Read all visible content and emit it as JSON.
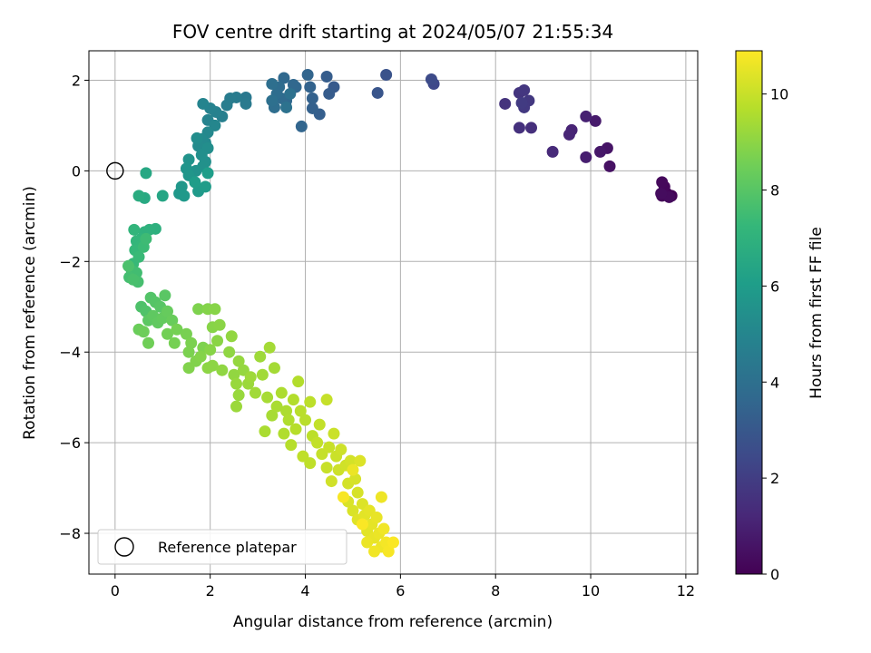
{
  "chart_data": {
    "type": "scatter",
    "title": "FOV centre drift starting at 2024/05/07 21:55:34",
    "xlabel": "Angular distance from reference (arcmin)",
    "ylabel": "Rotation from reference (arcmin)",
    "xlim": [
      -0.55,
      12.25
    ],
    "ylim": [
      -8.9,
      2.65
    ],
    "xticks": [
      0,
      2,
      4,
      6,
      8,
      10,
      12
    ],
    "yticks": [
      -8,
      -6,
      -4,
      -2,
      0,
      2
    ],
    "grid": true,
    "legend_position": "lower-left",
    "legend": [
      {
        "label": "Reference platepar",
        "marker": "hollow-circle"
      }
    ],
    "reference_point": {
      "x": 0,
      "y": 0
    },
    "colorbar": {
      "label": "Hours from first FF file",
      "range": [
        0,
        10.9
      ],
      "ticks": [
        0,
        2,
        4,
        6,
        8,
        10
      ],
      "colormap": "viridis"
    },
    "colormap_stops": [
      "#440154",
      "#482878",
      "#3e4989",
      "#31688e",
      "#26828e",
      "#1f9e89",
      "#35b779",
      "#6ece58",
      "#b5de2b",
      "#fde725"
    ],
    "points_xyc": [
      [
        11.7,
        -0.55,
        0.05
      ],
      [
        11.6,
        -0.5,
        0.1
      ],
      [
        11.5,
        -0.55,
        0.15
      ],
      [
        11.55,
        -0.35,
        0.2
      ],
      [
        11.5,
        -0.25,
        0.25
      ],
      [
        11.65,
        -0.58,
        0.3
      ],
      [
        11.48,
        -0.5,
        0.35
      ],
      [
        10.4,
        0.1,
        0.5
      ],
      [
        10.35,
        0.5,
        0.6
      ],
      [
        10.2,
        0.42,
        0.7
      ],
      [
        10.1,
        1.1,
        0.8
      ],
      [
        9.9,
        0.3,
        0.9
      ],
      [
        9.9,
        1.2,
        1.0
      ],
      [
        9.6,
        0.9,
        1.1
      ],
      [
        9.55,
        0.8,
        1.15
      ],
      [
        9.2,
        0.42,
        1.3
      ],
      [
        8.75,
        0.95,
        1.5
      ],
      [
        8.5,
        0.95,
        1.55
      ],
      [
        8.2,
        1.48,
        1.6
      ],
      [
        8.5,
        1.72,
        1.7
      ],
      [
        8.6,
        1.78,
        1.75
      ],
      [
        8.7,
        1.55,
        1.8
      ],
      [
        8.6,
        1.4,
        1.85
      ],
      [
        8.55,
        1.5,
        1.9
      ],
      [
        6.7,
        1.92,
        2.4
      ],
      [
        6.65,
        2.02,
        2.5
      ],
      [
        5.7,
        2.12,
        2.8
      ],
      [
        5.52,
        1.72,
        2.9
      ],
      [
        4.6,
        1.85,
        3.1
      ],
      [
        4.5,
        1.7,
        3.15
      ],
      [
        4.45,
        2.08,
        3.2
      ],
      [
        4.3,
        1.25,
        3.3
      ],
      [
        4.15,
        1.38,
        3.35
      ],
      [
        4.15,
        1.6,
        3.4
      ],
      [
        4.1,
        1.85,
        3.45
      ],
      [
        4.05,
        2.12,
        3.5
      ],
      [
        3.92,
        0.98,
        3.55
      ],
      [
        3.8,
        1.85,
        3.6
      ],
      [
        3.75,
        1.9,
        3.65
      ],
      [
        3.6,
        1.55,
        3.7
      ],
      [
        3.55,
        2.05,
        3.7
      ],
      [
        3.5,
        1.6,
        3.75
      ],
      [
        3.45,
        1.85,
        3.8
      ],
      [
        3.4,
        1.7,
        3.85
      ],
      [
        3.35,
        1.4,
        3.9
      ],
      [
        3.3,
        1.92,
        3.95
      ],
      [
        3.3,
        1.55,
        4.0
      ],
      [
        3.68,
        1.7,
        4.05
      ],
      [
        3.6,
        1.4,
        4.1
      ],
      [
        2.75,
        1.62,
        4.4
      ],
      [
        2.75,
        1.48,
        4.45
      ],
      [
        2.55,
        1.62,
        4.5
      ],
      [
        2.42,
        1.6,
        4.55
      ],
      [
        2.35,
        1.45,
        4.6
      ],
      [
        2.25,
        1.2,
        4.7
      ],
      [
        2.12,
        1.3,
        4.8
      ],
      [
        2.0,
        1.38,
        4.85
      ],
      [
        1.95,
        1.12,
        4.9
      ],
      [
        1.85,
        1.48,
        4.95
      ],
      [
        2.1,
        1.0,
        5.0
      ],
      [
        1.95,
        0.85,
        5.1
      ],
      [
        1.9,
        0.62,
        5.15
      ],
      [
        1.82,
        0.7,
        5.2
      ],
      [
        1.75,
        0.55,
        5.25
      ],
      [
        1.72,
        0.72,
        5.3
      ],
      [
        1.95,
        0.5,
        5.35
      ],
      [
        1.82,
        0.35,
        5.4
      ],
      [
        1.9,
        0.2,
        5.45
      ],
      [
        1.85,
        0.1,
        5.5
      ],
      [
        1.7,
        0.0,
        5.55
      ],
      [
        1.55,
        0.25,
        5.6
      ],
      [
        1.5,
        0.05,
        5.65
      ],
      [
        1.55,
        -0.1,
        5.7
      ],
      [
        1.4,
        -0.35,
        5.75
      ],
      [
        1.35,
        -0.5,
        5.8
      ],
      [
        1.45,
        -0.55,
        5.85
      ],
      [
        1.75,
        -0.45,
        5.9
      ],
      [
        1.9,
        -0.35,
        5.95
      ],
      [
        1.68,
        -0.25,
        6.0
      ],
      [
        1.95,
        -0.05,
        6.05
      ],
      [
        1.0,
        -0.55,
        6.4
      ],
      [
        0.65,
        -0.05,
        6.5
      ],
      [
        0.62,
        -0.6,
        6.6
      ],
      [
        0.5,
        -0.55,
        6.7
      ],
      [
        0.85,
        -1.28,
        6.9
      ],
      [
        0.72,
        -1.3,
        6.95
      ],
      [
        0.62,
        -1.35,
        7.0
      ],
      [
        0.55,
        -1.5,
        7.05
      ],
      [
        0.4,
        -1.3,
        7.1
      ],
      [
        0.45,
        -1.55,
        7.15
      ],
      [
        0.55,
        -1.65,
        7.2
      ],
      [
        0.42,
        -1.75,
        7.25
      ],
      [
        0.38,
        -2.05,
        7.3
      ],
      [
        0.5,
        -1.9,
        7.35
      ],
      [
        0.6,
        -1.68,
        7.4
      ],
      [
        0.65,
        -1.5,
        7.45
      ],
      [
        0.35,
        -2.2,
        7.5
      ],
      [
        0.45,
        -2.25,
        7.55
      ],
      [
        0.3,
        -2.35,
        7.6
      ],
      [
        0.48,
        -2.45,
        7.65
      ],
      [
        0.38,
        -2.4,
        7.7
      ],
      [
        0.28,
        -2.1,
        7.75
      ],
      [
        0.55,
        -3.0,
        7.8
      ],
      [
        0.65,
        -3.1,
        7.85
      ],
      [
        0.75,
        -2.8,
        7.9
      ],
      [
        0.85,
        -2.9,
        7.95
      ],
      [
        0.95,
        -3.0,
        8.0
      ],
      [
        1.05,
        -2.75,
        8.05
      ],
      [
        0.7,
        -3.3,
        8.1
      ],
      [
        0.8,
        -3.2,
        8.15
      ],
      [
        0.9,
        -3.35,
        8.2
      ],
      [
        1.0,
        -3.25,
        8.25
      ],
      [
        1.1,
        -3.1,
        8.3
      ],
      [
        1.2,
        -3.3,
        8.35
      ],
      [
        0.5,
        -3.5,
        8.4
      ],
      [
        0.6,
        -3.55,
        8.45
      ],
      [
        0.7,
        -3.8,
        8.5
      ],
      [
        1.1,
        -3.6,
        8.55
      ],
      [
        1.3,
        -3.5,
        8.6
      ],
      [
        1.25,
        -3.8,
        8.6
      ],
      [
        1.5,
        -3.6,
        8.65
      ],
      [
        1.6,
        -3.8,
        8.7
      ],
      [
        1.55,
        -4.0,
        8.7
      ],
      [
        1.75,
        -3.05,
        8.75
      ],
      [
        1.85,
        -3.9,
        8.75
      ],
      [
        1.7,
        -4.2,
        8.8
      ],
      [
        1.55,
        -4.35,
        8.8
      ],
      [
        1.8,
        -4.1,
        8.85
      ],
      [
        1.95,
        -3.05,
        8.85
      ],
      [
        2.0,
        -3.95,
        8.9
      ],
      [
        2.05,
        -3.45,
        8.9
      ],
      [
        2.1,
        -3.05,
        8.9
      ],
      [
        2.15,
        -3.75,
        8.95
      ],
      [
        2.2,
        -3.4,
        8.95
      ],
      [
        1.95,
        -4.35,
        9.0
      ],
      [
        2.05,
        -4.3,
        9.0
      ],
      [
        2.25,
        -4.4,
        9.05
      ],
      [
        2.4,
        -4.0,
        9.05
      ],
      [
        2.45,
        -3.65,
        9.1
      ],
      [
        2.5,
        -4.5,
        9.1
      ],
      [
        2.6,
        -4.2,
        9.15
      ],
      [
        2.7,
        -4.4,
        9.15
      ],
      [
        2.55,
        -4.7,
        9.2
      ],
      [
        2.6,
        -4.95,
        9.2
      ],
      [
        2.55,
        -5.2,
        9.25
      ],
      [
        2.8,
        -4.7,
        9.25
      ],
      [
        2.85,
        -4.55,
        9.3
      ],
      [
        3.05,
        -4.1,
        9.3
      ],
      [
        3.1,
        -4.5,
        9.35
      ],
      [
        2.95,
        -4.9,
        9.35
      ],
      [
        3.25,
        -3.9,
        9.4
      ],
      [
        3.35,
        -4.35,
        9.4
      ],
      [
        3.2,
        -5.0,
        9.45
      ],
      [
        3.3,
        -5.4,
        9.45
      ],
      [
        3.15,
        -5.75,
        9.5
      ],
      [
        3.4,
        -5.2,
        9.5
      ],
      [
        3.5,
        -4.9,
        9.55
      ],
      [
        3.6,
        -5.3,
        9.55
      ],
      [
        3.65,
        -5.5,
        9.6
      ],
      [
        3.55,
        -5.8,
        9.6
      ],
      [
        3.75,
        -5.05,
        9.65
      ],
      [
        3.85,
        -4.65,
        9.65
      ],
      [
        3.8,
        -5.7,
        9.7
      ],
      [
        3.7,
        -6.05,
        9.7
      ],
      [
        3.9,
        -5.3,
        9.75
      ],
      [
        4.0,
        -5.5,
        9.75
      ],
      [
        4.1,
        -5.1,
        9.8
      ],
      [
        4.15,
        -5.85,
        9.8
      ],
      [
        3.95,
        -6.3,
        9.85
      ],
      [
        4.1,
        -6.45,
        9.85
      ],
      [
        4.25,
        -6.0,
        9.9
      ],
      [
        4.3,
        -5.6,
        9.9
      ],
      [
        4.45,
        -5.05,
        9.95
      ],
      [
        4.35,
        -6.25,
        9.95
      ],
      [
        4.45,
        -6.55,
        10.0
      ],
      [
        4.5,
        -6.1,
        10.0
      ],
      [
        4.6,
        -5.8,
        10.05
      ],
      [
        4.65,
        -6.3,
        10.05
      ],
      [
        4.7,
        -6.6,
        10.1
      ],
      [
        4.75,
        -6.15,
        10.1
      ],
      [
        4.55,
        -6.85,
        10.15
      ],
      [
        4.85,
        -6.5,
        10.15
      ],
      [
        4.9,
        -6.9,
        10.2
      ],
      [
        4.95,
        -6.4,
        10.2
      ],
      [
        5.05,
        -6.8,
        10.25
      ],
      [
        5.1,
        -7.1,
        10.25
      ],
      [
        4.9,
        -7.3,
        10.3
      ],
      [
        5.0,
        -7.5,
        10.3
      ],
      [
        5.15,
        -6.4,
        10.35
      ],
      [
        5.2,
        -7.35,
        10.35
      ],
      [
        5.1,
        -7.7,
        10.4
      ],
      [
        5.25,
        -7.6,
        10.45
      ],
      [
        5.3,
        -7.95,
        10.45
      ],
      [
        5.35,
        -7.5,
        10.5
      ],
      [
        5.4,
        -7.8,
        10.5
      ],
      [
        5.45,
        -8.1,
        10.55
      ],
      [
        5.5,
        -7.65,
        10.55
      ],
      [
        5.3,
        -8.2,
        10.6
      ],
      [
        5.55,
        -8.0,
        10.6
      ],
      [
        5.6,
        -7.2,
        10.65
      ],
      [
        5.6,
        -8.3,
        10.65
      ],
      [
        5.65,
        -7.9,
        10.7
      ],
      [
        5.45,
        -8.4,
        10.7
      ],
      [
        5.7,
        -8.2,
        10.75
      ],
      [
        5.75,
        -8.4,
        10.8
      ],
      [
        5.85,
        -8.2,
        10.85
      ],
      [
        5.2,
        -7.8,
        10.85
      ],
      [
        4.8,
        -7.2,
        10.8
      ],
      [
        5.0,
        -6.6,
        10.6
      ]
    ]
  }
}
